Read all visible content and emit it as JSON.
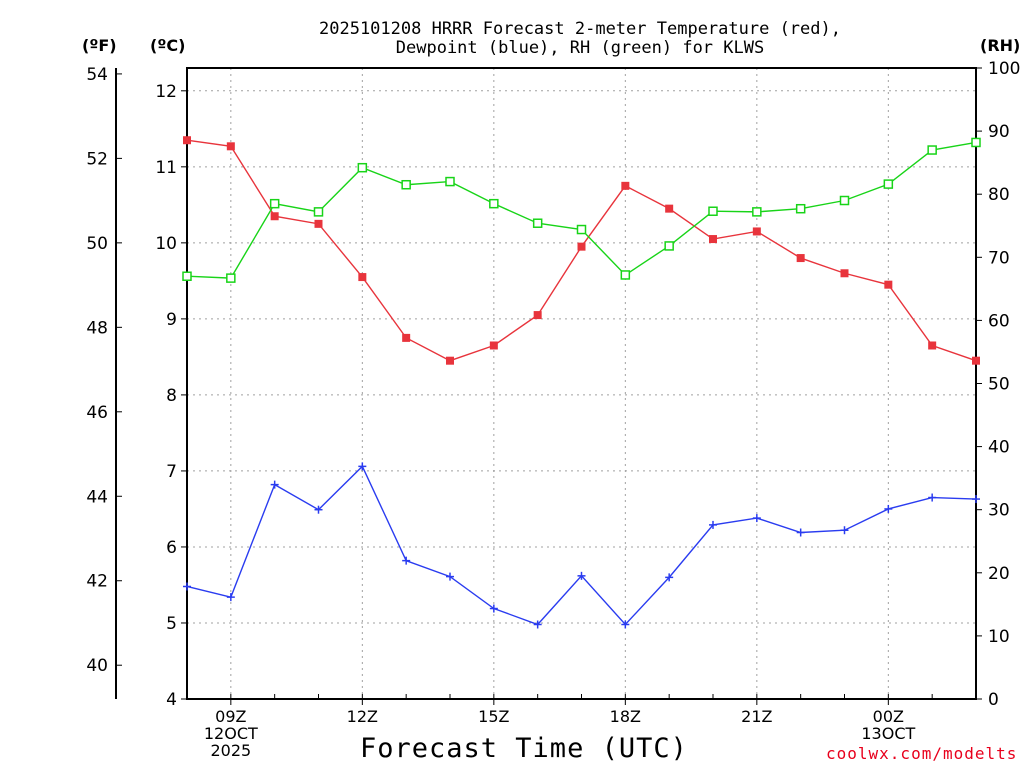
{
  "title_line1": "2025101208 HRRR Forecast 2-meter Temperature (red),",
  "title_line2": "Dewpoint (blue), RH (green) for KLWS",
  "units": {
    "fahrenheit": "(ºF)",
    "celsius": "(ºC)",
    "rh": "(RH)"
  },
  "xlabel": "Forecast Time (UTC)",
  "credit": "coolwx.com/modelts",
  "colors": {
    "temperature": "#e8343c",
    "dewpoint": "#2a3cf0",
    "rh": "#18d418",
    "grid": "#a0a0a0"
  },
  "chart_data": {
    "type": "line",
    "title": "2025101208 HRRR Forecast 2-meter Temperature (red), Dewpoint (blue), RH (green) for KLWS",
    "xlabel": "Forecast Time (UTC)",
    "x_hours": [
      8,
      9,
      10,
      11,
      12,
      13,
      14,
      15,
      16,
      17,
      18,
      19,
      20,
      21,
      22,
      23,
      24,
      25,
      26
    ],
    "x_tick_hours": [
      9,
      12,
      15,
      18,
      21,
      24
    ],
    "x_tick_labels": [
      [
        "09Z",
        "12OCT",
        "2025"
      ],
      [
        "12Z"
      ],
      [
        "15Z"
      ],
      [
        "18Z"
      ],
      [
        "21Z"
      ],
      [
        "00Z",
        "13OCT"
      ]
    ],
    "xlim": [
      8,
      26
    ],
    "axes": {
      "celsius": {
        "ylim": [
          4,
          12.3
        ],
        "ticks": [
          4,
          5,
          6,
          7,
          8,
          9,
          10,
          11,
          12
        ]
      },
      "fahrenheit": {
        "ylim": [
          39.2,
          54.14
        ],
        "ticks": [
          40,
          42,
          44,
          46,
          48,
          50,
          52,
          54
        ]
      },
      "rh": {
        "ylim": [
          0,
          100
        ],
        "ticks": [
          0,
          10,
          20,
          30,
          40,
          50,
          60,
          70,
          80,
          90,
          100
        ]
      }
    },
    "series": [
      {
        "name": "Temperature (red)",
        "axis": "celsius",
        "marker": "filled-square",
        "values": [
          11.35,
          11.27,
          10.35,
          10.25,
          9.55,
          8.75,
          8.45,
          8.65,
          9.05,
          9.95,
          10.75,
          10.45,
          10.05,
          10.15,
          9.8,
          9.6,
          9.45,
          8.65,
          8.45
        ]
      },
      {
        "name": "Dewpoint (blue)",
        "axis": "celsius",
        "marker": "plus",
        "values": [
          5.48,
          5.34,
          6.82,
          6.49,
          7.06,
          5.82,
          5.61,
          5.19,
          4.98,
          5.62,
          4.98,
          5.6,
          6.29,
          6.38,
          6.19,
          6.22,
          6.5,
          6.65,
          6.63
        ]
      },
      {
        "name": "RH (green)",
        "axis": "rh",
        "marker": "open-square",
        "values": [
          67,
          66.7,
          78.5,
          77.2,
          84.2,
          81.5,
          82,
          78.5,
          75.4,
          74.4,
          67.2,
          71.8,
          77.3,
          77.2,
          77.7,
          79,
          81.6,
          87,
          88.2
        ]
      }
    ]
  }
}
